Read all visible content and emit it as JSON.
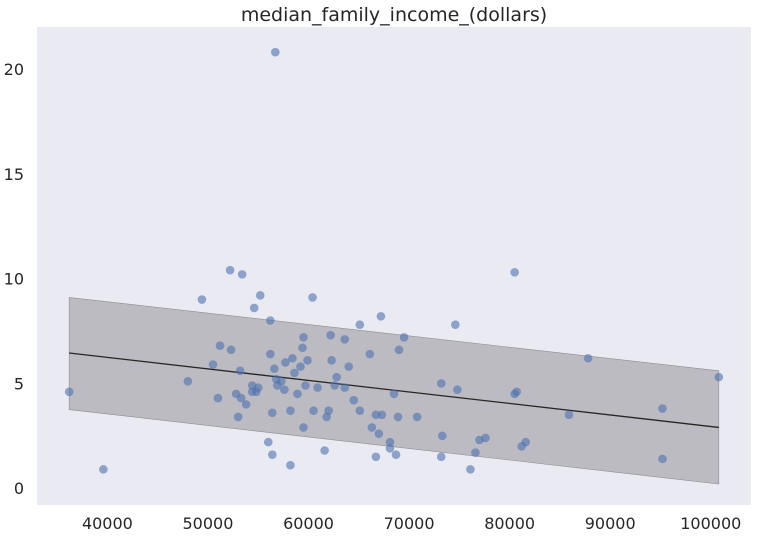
{
  "chart_data": {
    "type": "scatter",
    "title": "median_family_income_(dollars)",
    "xlabel": "",
    "ylabel": "",
    "xlim": [
      33000,
      104000
    ],
    "ylim": [
      -0.8,
      22.0
    ],
    "xticks": [
      40000,
      50000,
      60000,
      70000,
      80000,
      90000,
      100000
    ],
    "yticks": [
      0,
      5,
      10,
      15,
      20
    ],
    "grid": false,
    "background": "#eaeaf2",
    "point_color": "#4c72b0",
    "line_color": "#262626",
    "band_color": "#a8a6ad",
    "regression_line": {
      "x": [
        36200,
        100800
      ],
      "y": [
        6.45,
        2.9
      ]
    },
    "confidence_band": {
      "x": [
        36200,
        100800
      ],
      "lower": [
        3.75,
        0.2
      ],
      "upper": [
        9.1,
        5.6
      ]
    },
    "points": [
      [
        36200,
        4.6
      ],
      [
        39600,
        0.9
      ],
      [
        48000,
        5.1
      ],
      [
        49400,
        9.0
      ],
      [
        50500,
        5.9
      ],
      [
        51000,
        4.3
      ],
      [
        51200,
        6.8
      ],
      [
        52300,
        6.6
      ],
      [
        52200,
        10.4
      ],
      [
        52800,
        4.5
      ],
      [
        53000,
        3.4
      ],
      [
        53200,
        5.6
      ],
      [
        53400,
        10.2
      ],
      [
        53300,
        4.3
      ],
      [
        53800,
        4.0
      ],
      [
        54400,
        4.6
      ],
      [
        54400,
        4.9
      ],
      [
        54600,
        8.6
      ],
      [
        54800,
        4.6
      ],
      [
        55200,
        9.2
      ],
      [
        55000,
        4.8
      ],
      [
        56000,
        2.2
      ],
      [
        56200,
        8.0
      ],
      [
        56200,
        6.4
      ],
      [
        56400,
        3.6
      ],
      [
        56400,
        1.6
      ],
      [
        56600,
        5.7
      ],
      [
        56700,
        20.8
      ],
      [
        56800,
        5.2
      ],
      [
        56900,
        4.9
      ],
      [
        57300,
        5.1
      ],
      [
        57600,
        4.7
      ],
      [
        57700,
        6.0
      ],
      [
        58200,
        3.7
      ],
      [
        58200,
        1.1
      ],
      [
        58400,
        6.2
      ],
      [
        58600,
        5.5
      ],
      [
        58900,
        4.5
      ],
      [
        59200,
        5.8
      ],
      [
        59400,
        6.7
      ],
      [
        59500,
        7.2
      ],
      [
        59500,
        2.9
      ],
      [
        59700,
        4.9
      ],
      [
        59900,
        6.1
      ],
      [
        60400,
        9.1
      ],
      [
        60500,
        3.7
      ],
      [
        60900,
        4.8
      ],
      [
        61600,
        1.8
      ],
      [
        61800,
        3.4
      ],
      [
        62000,
        3.7
      ],
      [
        62200,
        7.3
      ],
      [
        62300,
        6.1
      ],
      [
        62600,
        4.9
      ],
      [
        62800,
        5.3
      ],
      [
        63600,
        4.8
      ],
      [
        63600,
        7.1
      ],
      [
        64000,
        5.8
      ],
      [
        64500,
        4.2
      ],
      [
        65100,
        3.7
      ],
      [
        65100,
        7.8
      ],
      [
        66100,
        6.4
      ],
      [
        66300,
        2.9
      ],
      [
        66700,
        3.5
      ],
      [
        66700,
        1.5
      ],
      [
        67000,
        2.6
      ],
      [
        67200,
        8.2
      ],
      [
        67300,
        3.5
      ],
      [
        68100,
        2.2
      ],
      [
        68100,
        1.9
      ],
      [
        68500,
        4.5
      ],
      [
        68700,
        1.6
      ],
      [
        68900,
        3.4
      ],
      [
        69000,
        6.6
      ],
      [
        69500,
        7.2
      ],
      [
        70800,
        3.4
      ],
      [
        73200,
        1.5
      ],
      [
        73200,
        5.0
      ],
      [
        73300,
        2.5
      ],
      [
        74600,
        7.8
      ],
      [
        74800,
        4.7
      ],
      [
        76100,
        0.9
      ],
      [
        76600,
        1.7
      ],
      [
        77000,
        2.3
      ],
      [
        77600,
        2.4
      ],
      [
        80500,
        10.3
      ],
      [
        80500,
        4.5
      ],
      [
        80700,
        4.6
      ],
      [
        81200,
        2.0
      ],
      [
        81600,
        2.2
      ],
      [
        85900,
        3.5
      ],
      [
        87800,
        6.2
      ],
      [
        95200,
        3.8
      ],
      [
        95200,
        1.4
      ],
      [
        100800,
        5.3
      ]
    ]
  }
}
